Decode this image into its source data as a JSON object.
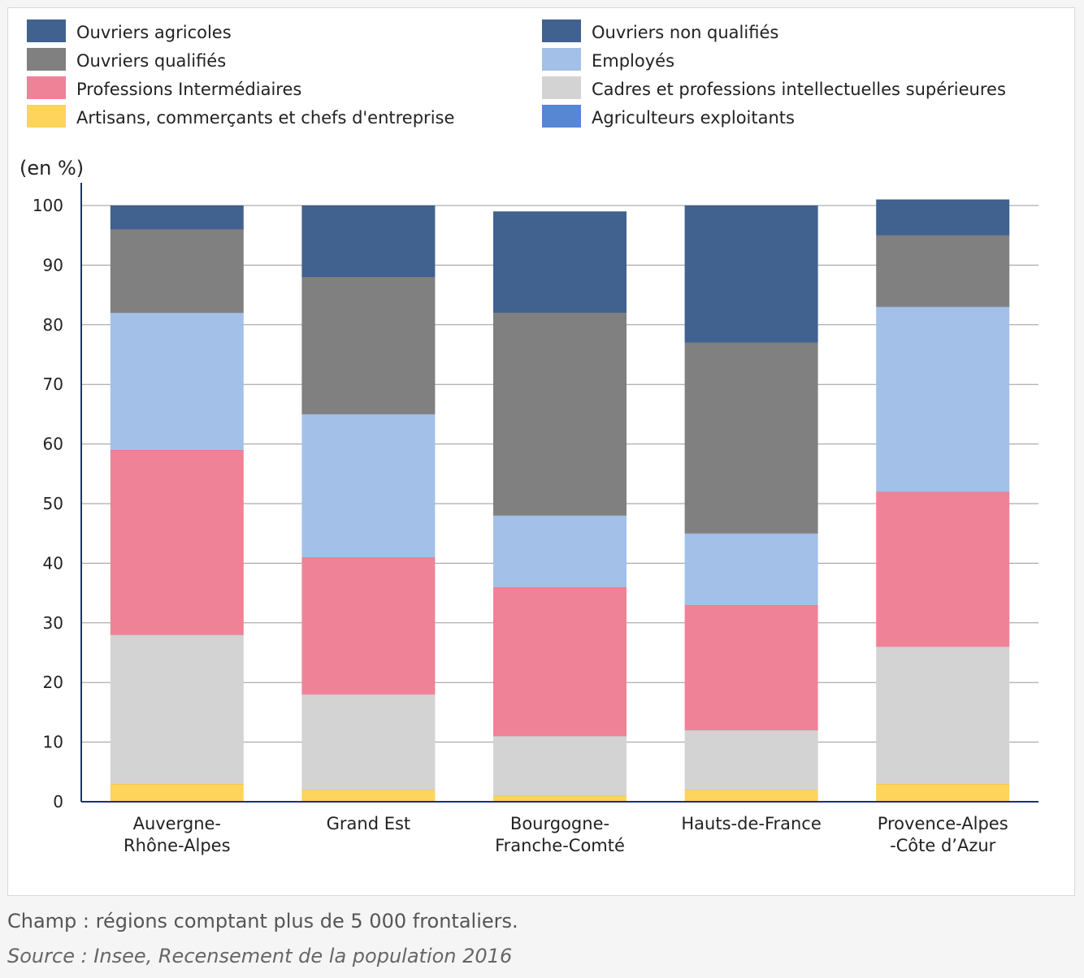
{
  "chart_data": {
    "type": "bar",
    "stacked": true,
    "ylabel": "(en %)",
    "ylim": [
      0,
      100
    ],
    "yticks": [
      0,
      10,
      20,
      30,
      40,
      50,
      60,
      70,
      80,
      90,
      100
    ],
    "grid": true,
    "legend_position": "top",
    "categories": [
      [
        "Auvergne-",
        "Rhône-Alpes"
      ],
      [
        "Grand Est"
      ],
      [
        "Bourgogne-",
        "Franche-Comté"
      ],
      [
        "Hauts-de-France"
      ],
      [
        "Provence-Alpes",
        "-Côte d’Azur"
      ]
    ],
    "legend": [
      {
        "name": "Ouvriers agricoles",
        "color": "#41628f"
      },
      {
        "name": "Ouvriers non qualifiés",
        "color": "#41628f"
      },
      {
        "name": "Ouvriers qualifiés",
        "color": "#808080"
      },
      {
        "name": "Employés",
        "color": "#a3c0e8"
      },
      {
        "name": "Professions Intermédiaires",
        "color": "#f08297"
      },
      {
        "name": "Cadres et professions intellectuelles supérieures",
        "color": "#d3d3d3"
      },
      {
        "name": "Artisans, commerçants et chefs d'entreprise",
        "color": "#ffd45a"
      },
      {
        "name": "Agriculteurs exploitants",
        "color": "#5686d4"
      }
    ],
    "series": [
      {
        "name": "Agriculteurs exploitants",
        "color": "#5686d4",
        "values": [
          0,
          0,
          0,
          0,
          0
        ]
      },
      {
        "name": "Artisans, commerçants et chefs d'entreprise",
        "color": "#ffd45a",
        "values": [
          3,
          2,
          1,
          2,
          3
        ]
      },
      {
        "name": "Cadres et professions intellectuelles supérieures",
        "color": "#d3d3d3",
        "values": [
          25,
          16,
          10,
          10,
          23
        ]
      },
      {
        "name": "Professions Intermédiaires",
        "color": "#f08297",
        "values": [
          31,
          23,
          25,
          21,
          26
        ]
      },
      {
        "name": "Employés",
        "color": "#a3c0e8",
        "values": [
          23,
          24,
          12,
          12,
          31
        ]
      },
      {
        "name": "Ouvriers qualifiés",
        "color": "#808080",
        "values": [
          14,
          23,
          34,
          32,
          12
        ]
      },
      {
        "name": "Ouvriers non qualifiés",
        "color": "#41628f",
        "values": [
          4,
          12,
          17,
          23,
          6
        ]
      },
      {
        "name": "Ouvriers agricoles",
        "color": "#41628f",
        "values": [
          0,
          0,
          0,
          0,
          0
        ]
      }
    ]
  },
  "footnote": "Champ : régions comptant plus de 5 000 frontaliers.",
  "source": "Source : Insee, Recensement de la population 2016"
}
